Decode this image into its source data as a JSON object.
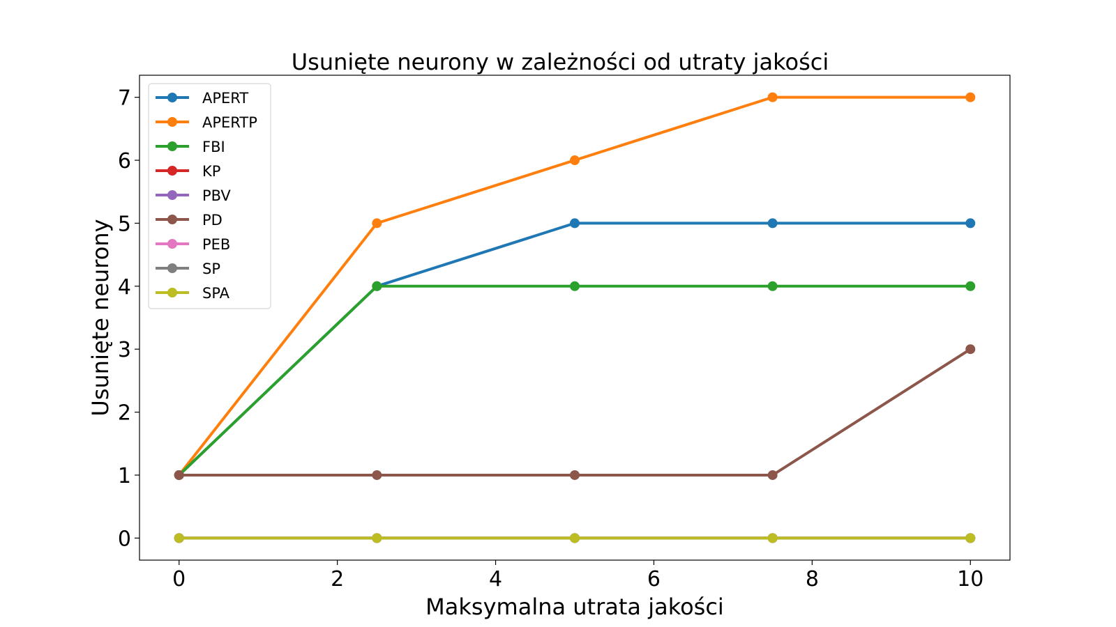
{
  "chart_data": {
    "type": "line",
    "title": "Usunięte neurony w zależności od utraty jakości",
    "xlabel": "Maksymalna utrata jakości",
    "ylabel": "Usunięte neurony",
    "x": [
      0,
      2.5,
      5,
      7.5,
      10
    ],
    "x_ticks": [
      0,
      2,
      4,
      6,
      8,
      10
    ],
    "y_ticks": [
      0,
      1,
      2,
      3,
      4,
      5,
      6,
      7
    ],
    "xlim": [
      -0.5,
      10.5
    ],
    "ylim": [
      -0.35,
      7.35
    ],
    "grid": false,
    "legend_position": "top-left",
    "series": [
      {
        "name": "APERT",
        "color": "#1f77b4",
        "values": [
          1,
          4,
          5,
          5,
          5
        ]
      },
      {
        "name": "APERTP",
        "color": "#ff7f0e",
        "values": [
          1,
          5,
          6,
          7,
          7
        ]
      },
      {
        "name": "FBI",
        "color": "#2ca02c",
        "values": [
          1,
          4,
          4,
          4,
          4
        ]
      },
      {
        "name": "KP",
        "color": "#d62728",
        "values": [
          0,
          0,
          0,
          0,
          0
        ]
      },
      {
        "name": "PBV",
        "color": "#9467bd",
        "values": [
          0,
          0,
          0,
          0,
          0
        ]
      },
      {
        "name": "PD",
        "color": "#8c564b",
        "values": [
          1,
          1,
          1,
          1,
          3
        ]
      },
      {
        "name": "PEB",
        "color": "#e377c2",
        "values": [
          0,
          0,
          0,
          0,
          0
        ]
      },
      {
        "name": "SP",
        "color": "#7f7f7f",
        "values": [
          0,
          0,
          0,
          0,
          0
        ]
      },
      {
        "name": "SPA",
        "color": "#bcbd22",
        "values": [
          0,
          0,
          0,
          0,
          0
        ]
      }
    ]
  }
}
